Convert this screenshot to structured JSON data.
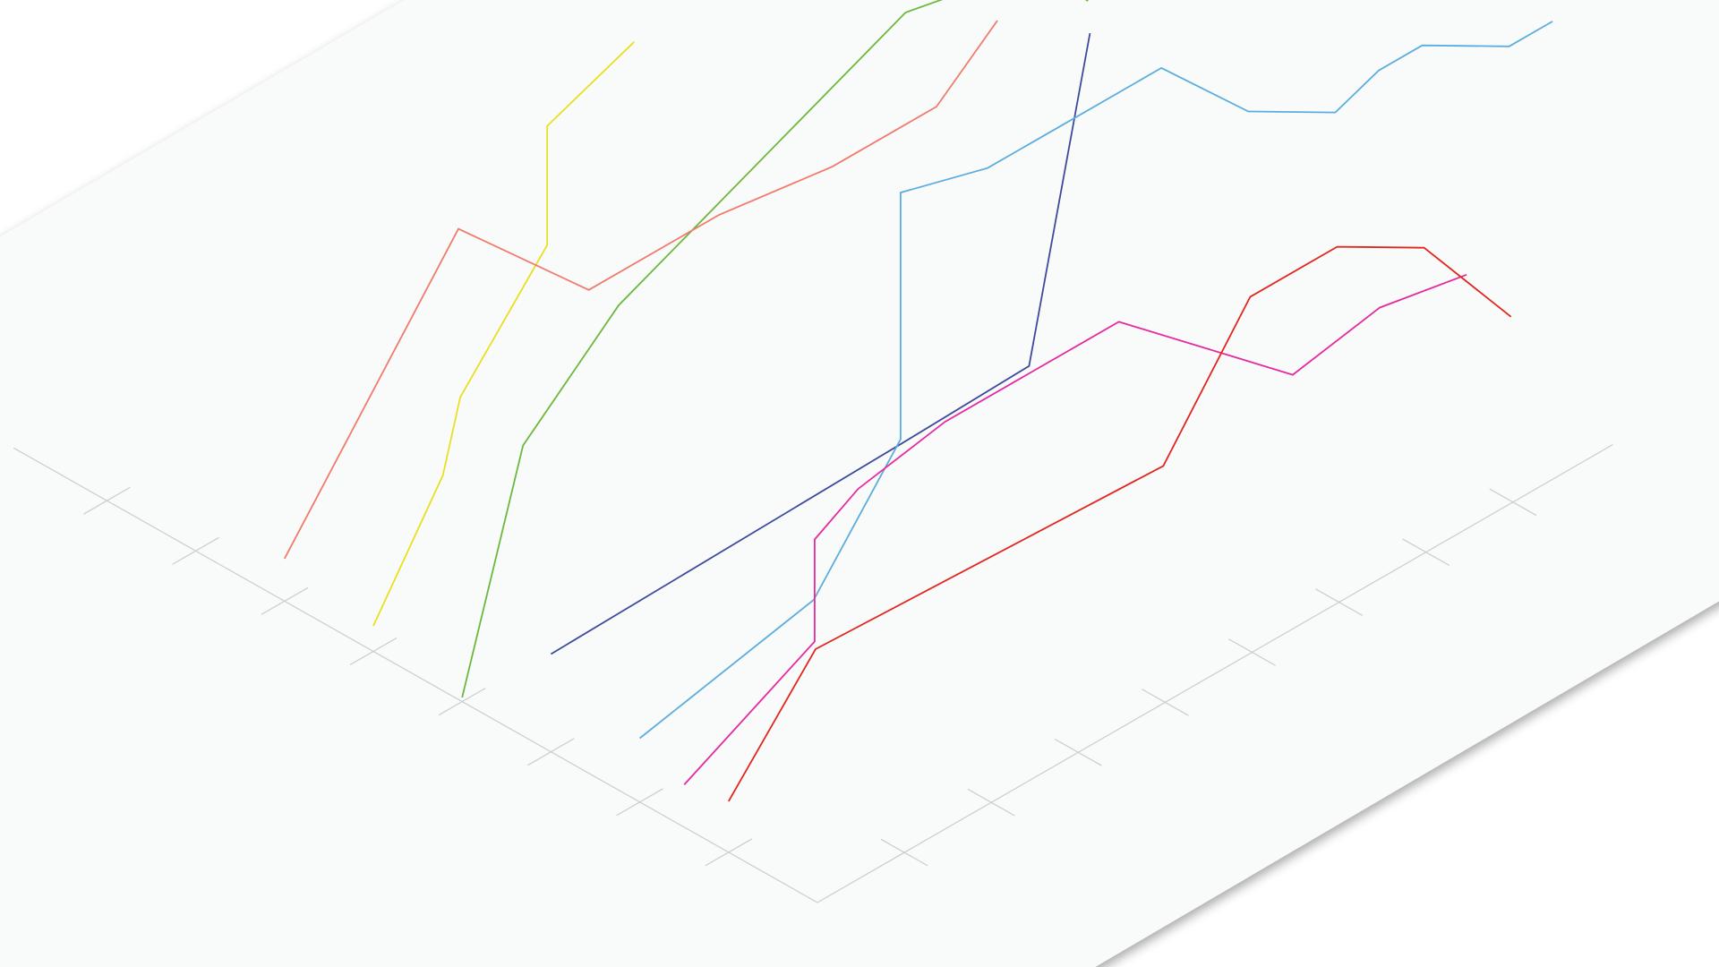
{
  "chart_data": {
    "type": "line",
    "title": "",
    "xlabel": "",
    "ylabel": "",
    "zlabel": "",
    "grid": false,
    "legend": "none",
    "floor_color": "#f9fafa",
    "axis_color": "#cccccc",
    "series": [
      {
        "color": "#3d4a9c",
        "points": [
          [
            0.0,
            3.0,
            1.15
          ],
          [
            2.0,
            3.0,
            1.2
          ],
          [
            4.0,
            3.0,
            1.25
          ],
          [
            5.5,
            3.0,
            1.3
          ],
          [
            6.2,
            3.0,
            4.8
          ]
        ]
      },
      {
        "color": "#6cb83c",
        "points": [
          [
            0.0,
            4.0,
            0.05
          ],
          [
            0.7,
            4.0,
            2.6
          ],
          [
            1.8,
            4.0,
            3.6
          ],
          [
            5.1,
            4.0,
            5.1
          ],
          [
            6.0,
            4.0,
            4.9
          ],
          [
            6.7,
            4.0,
            4.6
          ],
          [
            7.2,
            4.0,
            4.0
          ]
        ]
      },
      {
        "color": "#e8e020",
        "points": [
          [
            0.0,
            5.0,
            0.3
          ],
          [
            0.8,
            5.0,
            1.6
          ],
          [
            1.0,
            5.0,
            2.4
          ],
          [
            2.0,
            5.0,
            3.6
          ],
          [
            2.0,
            5.0,
            5.0
          ],
          [
            3.0,
            5.0,
            5.4
          ]
        ]
      },
      {
        "color": "#5aaede",
        "points": [
          [
            0.0,
            2.0,
            0.75
          ],
          [
            2.0,
            2.0,
            1.2
          ],
          [
            3.0,
            2.0,
            2.5
          ],
          [
            3.0,
            2.0,
            5.4
          ],
          [
            4.0,
            2.0,
            5.1
          ],
          [
            4.6,
            2.0,
            5.1
          ],
          [
            6.0,
            2.0,
            5.1
          ],
          [
            7.0,
            2.0,
            4.0
          ],
          [
            8.0,
            2.0,
            3.4
          ],
          [
            8.5,
            2.0,
            3.6
          ],
          [
            9.0,
            2.0,
            3.6
          ],
          [
            10.0,
            2.0,
            3.0
          ],
          [
            10.5,
            2.0,
            3.0
          ]
        ]
      },
      {
        "color": "#f07b6b",
        "points": [
          [
            0.0,
            6.0,
            0.5
          ],
          [
            2.0,
            6.0,
            3.2
          ],
          [
            3.5,
            6.0,
            1.6
          ],
          [
            5.0,
            6.0,
            1.6
          ],
          [
            6.3,
            6.0,
            1.4
          ],
          [
            7.5,
            6.0,
            1.4
          ],
          [
            8.2,
            6.0,
            2.0
          ]
        ]
      },
      {
        "color": "#e52aa1",
        "points": [
          [
            0.0,
            1.5,
            0.5
          ],
          [
            1.5,
            1.5,
            1.3
          ],
          [
            1.5,
            1.5,
            2.5
          ],
          [
            2.0,
            1.5,
            2.8
          ],
          [
            3.0,
            1.5,
            3.0
          ],
          [
            5.0,
            1.5,
            3.0
          ],
          [
            7.0,
            1.5,
            1.2
          ],
          [
            8.0,
            1.5,
            1.4
          ],
          [
            9.0,
            1.5,
            1.2
          ]
        ]
      },
      {
        "color": "#e0261e",
        "points": [
          [
            0.0,
            1.0,
            0.6
          ],
          [
            1.0,
            1.0,
            1.8
          ],
          [
            5.0,
            1.0,
            1.6
          ],
          [
            6.0,
            1.0,
            3.0
          ],
          [
            7.0,
            1.0,
            3.0
          ],
          [
            8.0,
            1.0,
            2.4
          ],
          [
            9.0,
            1.0,
            1.0
          ]
        ]
      }
    ]
  }
}
